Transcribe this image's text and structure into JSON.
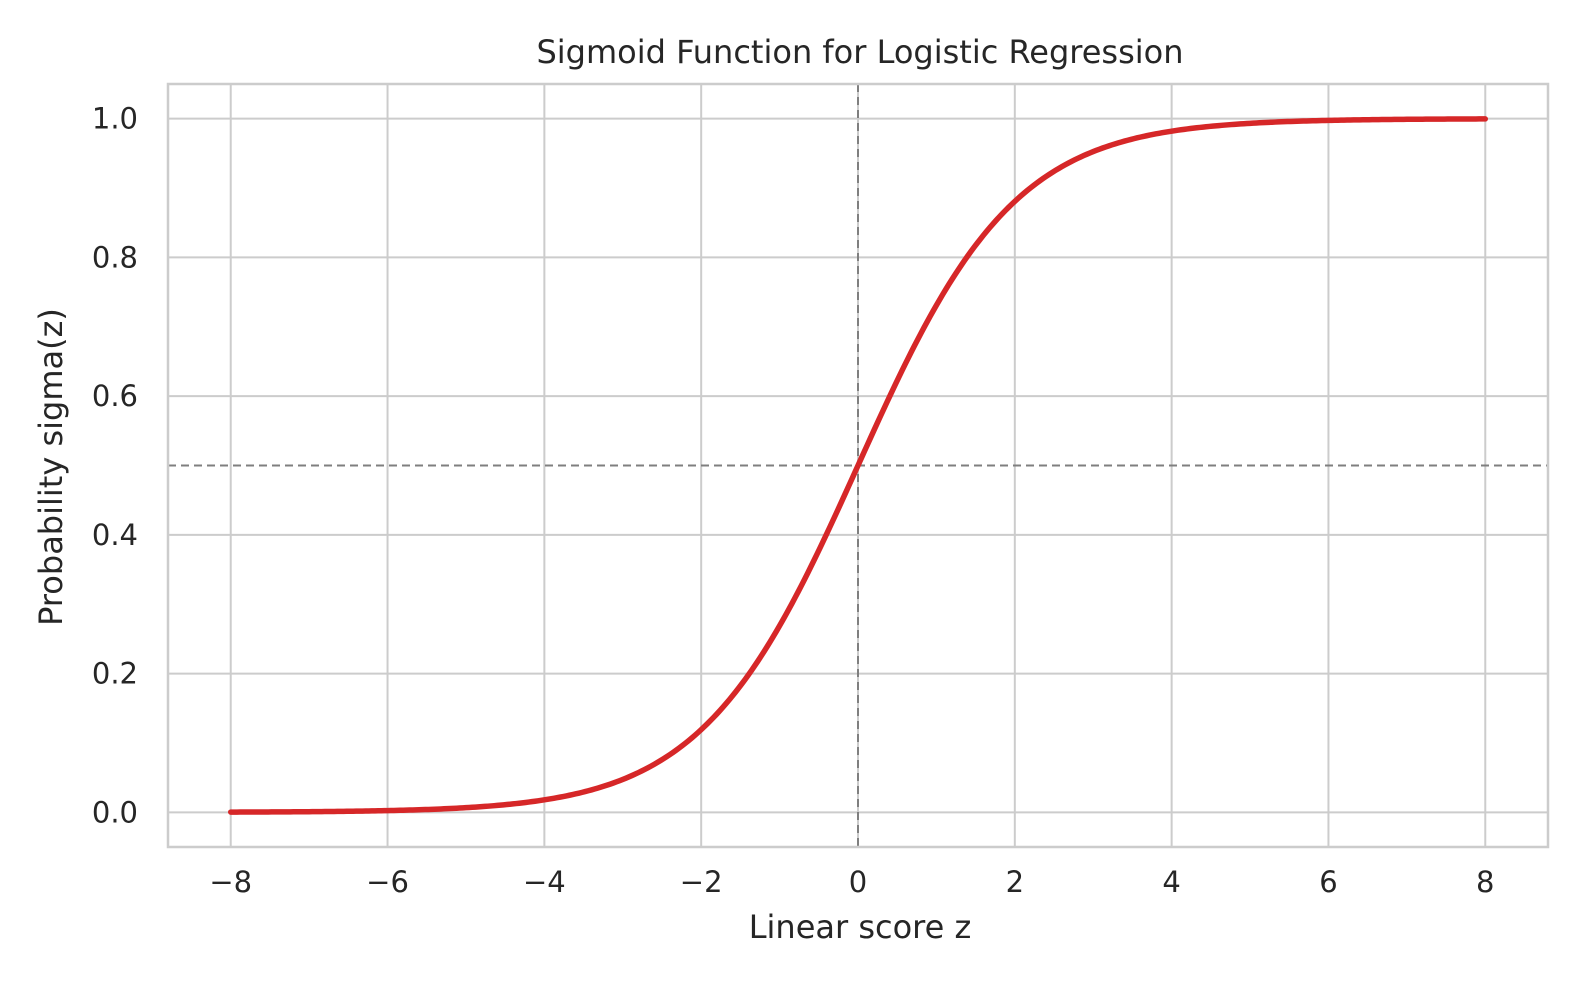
{
  "chart_data": {
    "type": "line",
    "title": "Sigmoid Function for Logistic Regression",
    "xlabel": "Linear score z",
    "ylabel": "Probability sigma(z)",
    "xlim": [
      -8.8,
      8.8
    ],
    "ylim": [
      -0.05,
      1.05
    ],
    "x_ticks": [
      -8,
      -6,
      -4,
      -2,
      0,
      2,
      4,
      6,
      8
    ],
    "x_tick_labels": [
      "−8",
      "−6",
      "−4",
      "−2",
      "0",
      "2",
      "4",
      "6",
      "8"
    ],
    "y_ticks": [
      0.0,
      0.2,
      0.4,
      0.6,
      0.8,
      1.0
    ],
    "y_tick_labels": [
      "0.0",
      "0.2",
      "0.4",
      "0.6",
      "0.8",
      "1.0"
    ],
    "grid": true,
    "series": [
      {
        "function": "sigmoid",
        "x_range": [
          -8,
          8
        ],
        "color": "#d62728",
        "points": [
          {
            "x": -8,
            "y": 0.0003
          },
          {
            "x": -6,
            "y": 0.0025
          },
          {
            "x": -4,
            "y": 0.018
          },
          {
            "x": -3,
            "y": 0.047
          },
          {
            "x": -2,
            "y": 0.119
          },
          {
            "x": -1,
            "y": 0.269
          },
          {
            "x": 0,
            "y": 0.5
          },
          {
            "x": 1,
            "y": 0.731
          },
          {
            "x": 2,
            "y": 0.881
          },
          {
            "x": 3,
            "y": 0.953
          },
          {
            "x": 4,
            "y": 0.982
          },
          {
            "x": 6,
            "y": 0.9975
          },
          {
            "x": 8,
            "y": 0.9997
          }
        ]
      }
    ],
    "reference_lines": [
      {
        "orientation": "horizontal",
        "value": 0.5,
        "style": "dashed",
        "color": "#7f7f7f"
      },
      {
        "orientation": "vertical",
        "value": 0,
        "style": "dashed",
        "color": "#7f7f7f"
      }
    ],
    "colors": {
      "grid": "#cccccc",
      "spine": "#cccccc",
      "text": "#262626",
      "background": "#ffffff"
    }
  }
}
